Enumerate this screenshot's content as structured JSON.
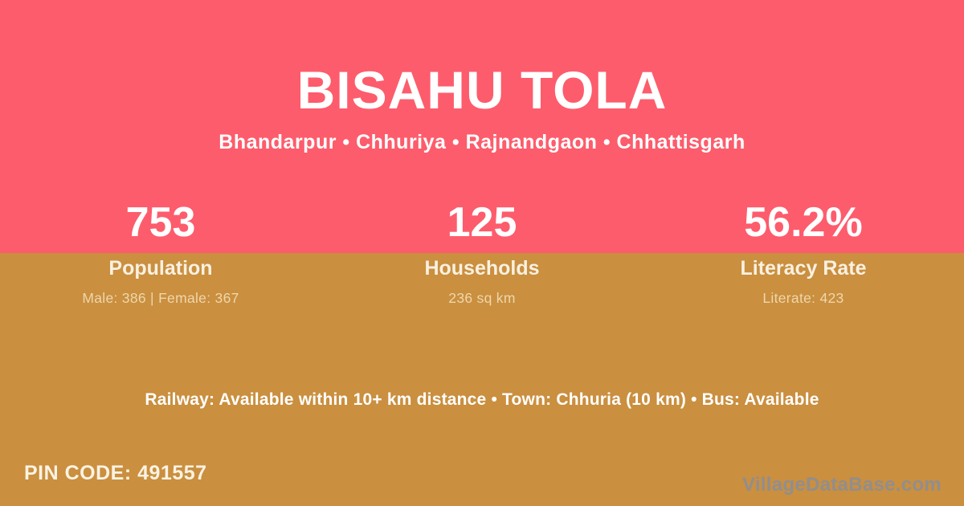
{
  "colors": {
    "header_bg": "#fd5c6c",
    "body_bg": "#ca8f3f",
    "title_text": "#ffffff",
    "stat_label_text": "#f9f1e1",
    "stat_detail_text": "#eed7ab",
    "pin_code_text": "#fbf3e3",
    "watermark_text": "#8e8e93"
  },
  "header": {
    "village_name": "BISAHU TOLA",
    "breadcrumb": "Bhandarpur • Chhuriya • Rajnandgaon • Chhattisgarh"
  },
  "stats": [
    {
      "value": "753",
      "label": "Population",
      "detail": "Male: 386 | Female: 367"
    },
    {
      "value": "125",
      "label": "Households",
      "detail": "236 sq km"
    },
    {
      "value": "56.2%",
      "label": "Literacy Rate",
      "detail": "Literate: 423"
    }
  ],
  "amenities_line": "Railway: Available within 10+ km distance  •  Town: Chhuria (10 km)  •  Bus: Available",
  "footer": {
    "pin_code": "PIN CODE: 491557",
    "watermark": "VillageDataBase.com"
  }
}
